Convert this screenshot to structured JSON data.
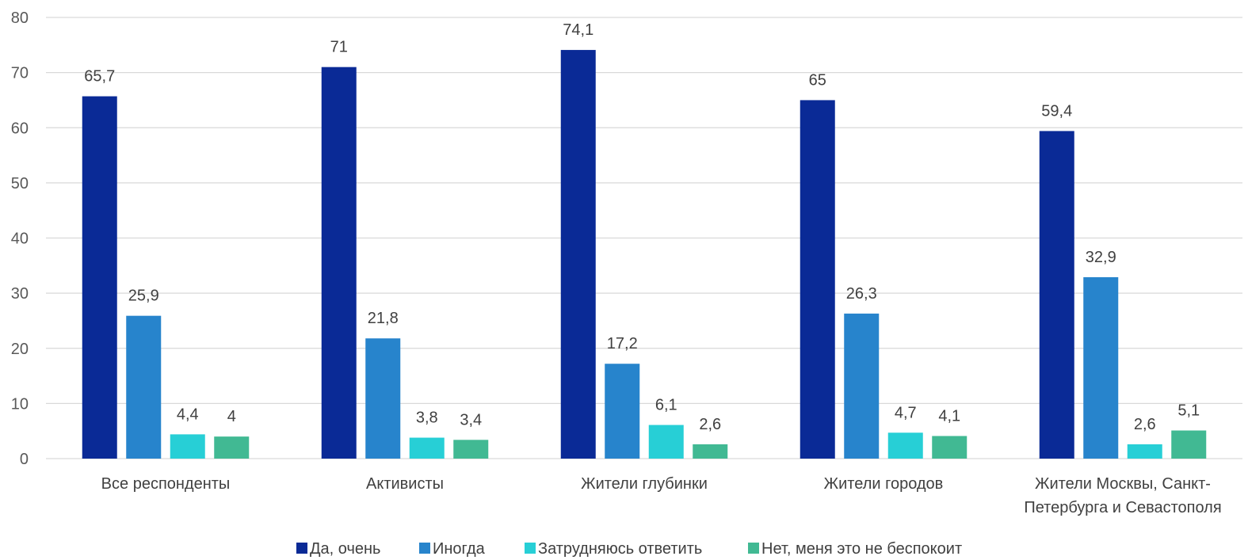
{
  "chart_data": {
    "type": "bar",
    "title": "",
    "xlabel": "",
    "ylabel": "",
    "ylim": [
      0,
      80
    ],
    "yticks": [
      0,
      10,
      20,
      30,
      40,
      50,
      60,
      70,
      80
    ],
    "grid": true,
    "legend_position": "bottom",
    "categories": [
      [
        "Все респонденты"
      ],
      [
        "Активисты"
      ],
      [
        "Жители глубинки"
      ],
      [
        "Жители городов"
      ],
      [
        "Жители Москвы, Санкт-",
        "Петербурга и Севастополя"
      ]
    ],
    "series": [
      {
        "name": "Да, очень",
        "color": "#0a2a96",
        "values": [
          65.7,
          71,
          74.1,
          65,
          59.4
        ],
        "labels": [
          "65,7",
          "71",
          "74,1",
          "65",
          "59,4"
        ]
      },
      {
        "name": "Иногда",
        "color": "#2784cc",
        "values": [
          25.9,
          21.8,
          17.2,
          26.3,
          32.9
        ],
        "labels": [
          "25,9",
          "21,8",
          "17,2",
          "26,3",
          "32,9"
        ]
      },
      {
        "name": "Затрудняюсь ответить",
        "color": "#27cfd6",
        "values": [
          4.4,
          3.8,
          6.1,
          4.7,
          2.6
        ],
        "labels": [
          "4,4",
          "3,8",
          "6,1",
          "4,7",
          "2,6"
        ]
      },
      {
        "name": "Нет, меня это не беспокоит",
        "color": "#41b993",
        "values": [
          4,
          3.4,
          2.6,
          4.1,
          5.1
        ],
        "labels": [
          "4",
          "3,4",
          "2,6",
          "4,1",
          "5,1"
        ]
      }
    ]
  }
}
